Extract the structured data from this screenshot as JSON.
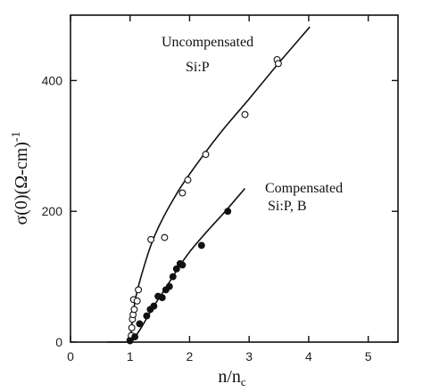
{
  "chart_data": {
    "type": "scatter",
    "title": "",
    "xlabel": "n/n",
    "xlabel_sub": "c",
    "ylabel": "σ(0)(Ω-cm)",
    "ylabel_sup": "-1",
    "xlim": [
      0,
      5.5
    ],
    "ylim": [
      0,
      500
    ],
    "x_ticks": [
      0,
      1,
      2,
      3,
      4,
      5
    ],
    "y_ticks": [
      0,
      200,
      400
    ],
    "grid": false,
    "series": [
      {
        "name": "Uncompensated Si:P",
        "marker": "open-circle",
        "points": [
          {
            "x": 1.0,
            "y": 3
          },
          {
            "x": 1.02,
            "y": 10
          },
          {
            "x": 1.03,
            "y": 22
          },
          {
            "x": 1.04,
            "y": 35
          },
          {
            "x": 1.05,
            "y": 42
          },
          {
            "x": 1.07,
            "y": 50
          },
          {
            "x": 1.06,
            "y": 65
          },
          {
            "x": 1.12,
            "y": 63
          },
          {
            "x": 1.14,
            "y": 80
          },
          {
            "x": 1.35,
            "y": 157
          },
          {
            "x": 1.58,
            "y": 160
          },
          {
            "x": 1.88,
            "y": 228
          },
          {
            "x": 1.97,
            "y": 248
          },
          {
            "x": 2.27,
            "y": 287
          },
          {
            "x": 2.93,
            "y": 348
          },
          {
            "x": 3.47,
            "y": 432
          },
          {
            "x": 3.49,
            "y": 426
          }
        ],
        "curve": [
          {
            "x": 1.0,
            "y": 0
          },
          {
            "x": 1.05,
            "y": 42
          },
          {
            "x": 1.1,
            "y": 70
          },
          {
            "x": 1.2,
            "y": 105
          },
          {
            "x": 1.35,
            "y": 148
          },
          {
            "x": 1.5,
            "y": 180
          },
          {
            "x": 1.75,
            "y": 222
          },
          {
            "x": 2.0,
            "y": 257
          },
          {
            "x": 2.5,
            "y": 318
          },
          {
            "x": 3.0,
            "y": 372
          },
          {
            "x": 3.5,
            "y": 427
          },
          {
            "x": 4.02,
            "y": 482
          }
        ]
      },
      {
        "name": "Compensated Si:P, B",
        "marker": "filled-circle",
        "points": [
          {
            "x": 1.0,
            "y": 2
          },
          {
            "x": 1.08,
            "y": 8
          },
          {
            "x": 1.16,
            "y": 28
          },
          {
            "x": 1.28,
            "y": 40
          },
          {
            "x": 1.34,
            "y": 50
          },
          {
            "x": 1.4,
            "y": 55
          },
          {
            "x": 1.47,
            "y": 70
          },
          {
            "x": 1.54,
            "y": 68
          },
          {
            "x": 1.6,
            "y": 80
          },
          {
            "x": 1.66,
            "y": 85
          },
          {
            "x": 1.72,
            "y": 100
          },
          {
            "x": 1.78,
            "y": 112
          },
          {
            "x": 1.84,
            "y": 120
          },
          {
            "x": 1.88,
            "y": 118
          },
          {
            "x": 2.2,
            "y": 148
          },
          {
            "x": 2.64,
            "y": 200
          }
        ],
        "curve": [
          {
            "x": 1.02,
            "y": 0
          },
          {
            "x": 1.1,
            "y": 10
          },
          {
            "x": 1.2,
            "y": 24
          },
          {
            "x": 1.4,
            "y": 55
          },
          {
            "x": 1.6,
            "y": 83
          },
          {
            "x": 1.8,
            "y": 112
          },
          {
            "x": 2.0,
            "y": 138
          },
          {
            "x": 2.3,
            "y": 170
          },
          {
            "x": 2.6,
            "y": 200
          },
          {
            "x": 2.93,
            "y": 235
          }
        ]
      }
    ],
    "baseline": [
      {
        "x": 0.62,
        "y": 0
      },
      {
        "x": 1.02,
        "y": 0
      }
    ],
    "annotations": [
      {
        "id": "uncomp",
        "lines": [
          "Uncompensated",
          "Si:P"
        ]
      },
      {
        "id": "comp",
        "lines": [
          "Compensated",
          "Si:P, B"
        ]
      }
    ]
  }
}
